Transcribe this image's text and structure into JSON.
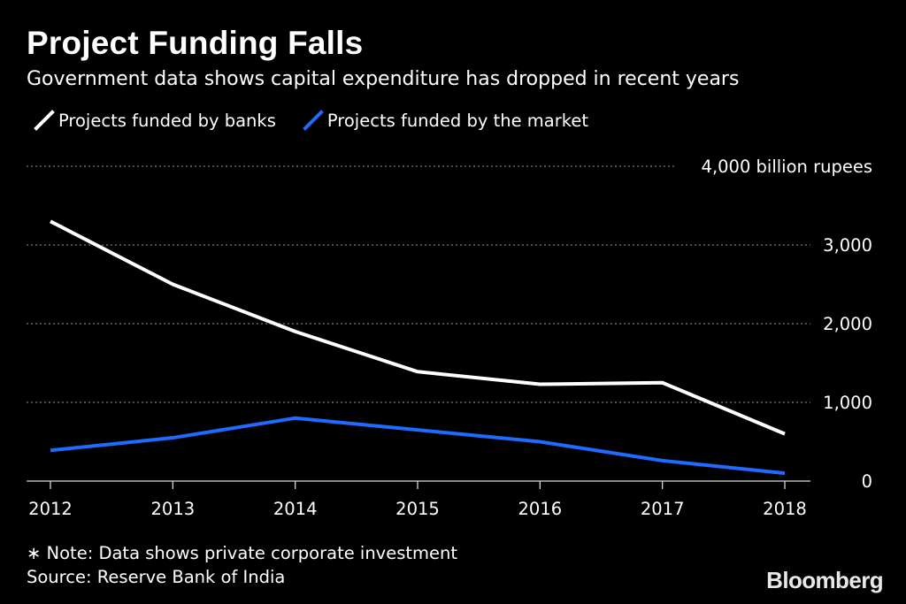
{
  "header": {
    "title": "Project Funding Falls",
    "subtitle": "Government data shows capital expenditure has dropped in recent years"
  },
  "colors": {
    "background": "#000000",
    "banks_line": "#ffffff",
    "market_line": "#1f6bff",
    "grid": "#7a7a7a",
    "text": "#ffffff"
  },
  "chart_data": {
    "type": "line",
    "x": [
      "2012",
      "2013",
      "2014",
      "2015",
      "2016",
      "2017",
      "2018"
    ],
    "series": [
      {
        "name": "Projects funded by banks",
        "values": [
          3300,
          2500,
          1900,
          1390,
          1230,
          1250,
          600
        ]
      },
      {
        "name": "Projects funded by the market",
        "values": [
          390,
          550,
          800,
          650,
          500,
          260,
          100
        ]
      }
    ],
    "ylim": [
      0,
      4000
    ],
    "yticks": [
      0,
      1000,
      2000,
      3000,
      4000
    ],
    "ytick_labels": [
      "0",
      "1,000",
      "2,000",
      "3,000",
      "4,000 billion rupees"
    ],
    "grid": true,
    "legend_position": "top-left"
  },
  "footer": {
    "note": "∗ Note: Data shows private corporate investment",
    "source": "Source: Reserve Bank of India",
    "brand": "Bloomberg"
  }
}
